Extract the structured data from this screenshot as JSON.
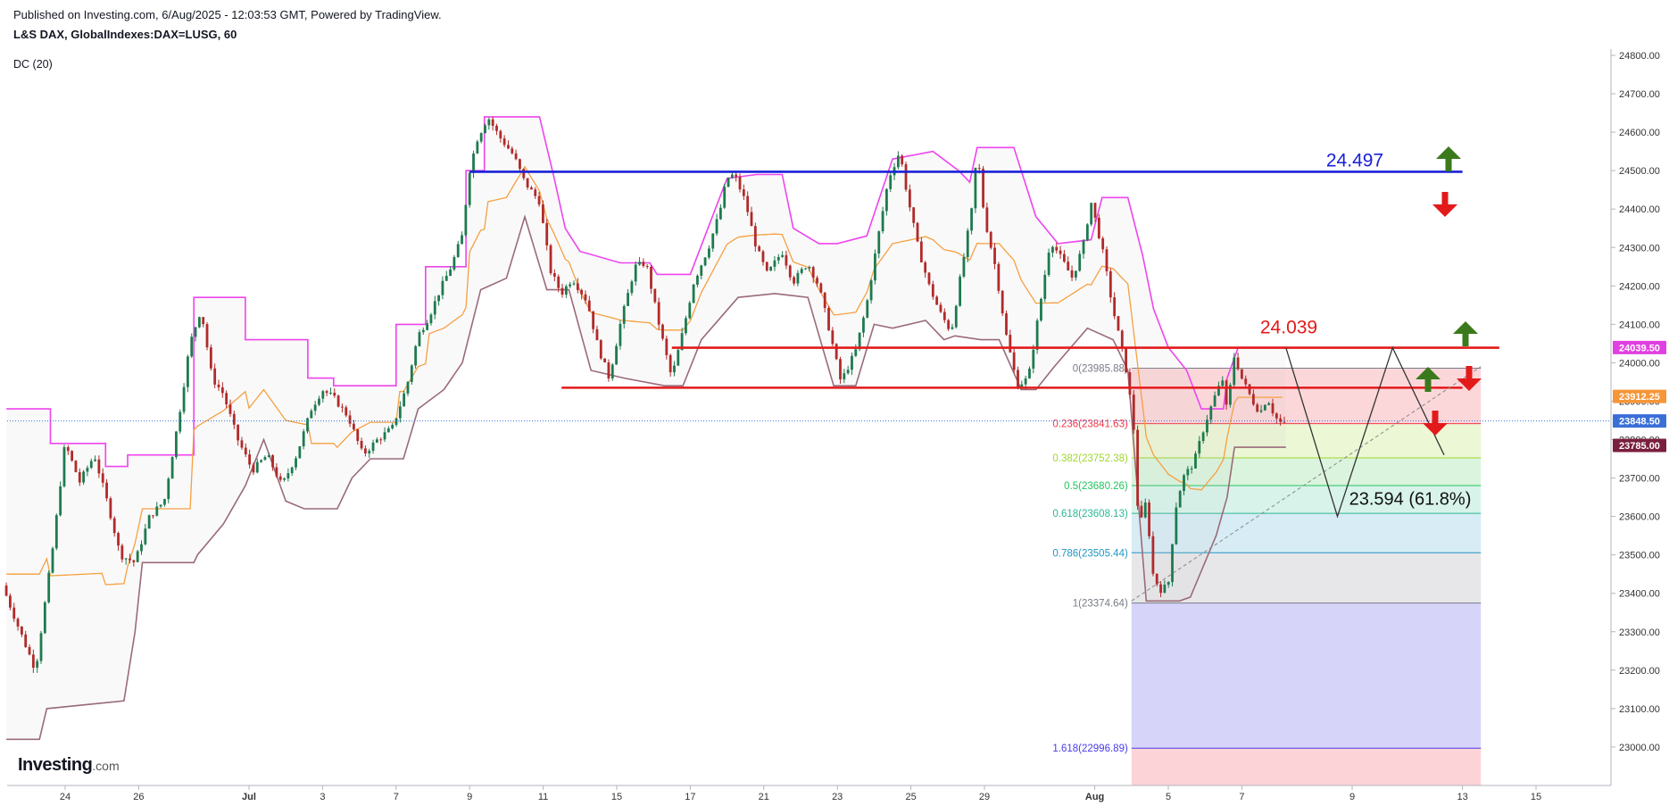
{
  "header": {
    "published": "Published on Investing.com, 6/Aug/2025 - 12:03:53 GMT, Powered by TradingView.",
    "symbol": "L&S DAX, GlobalIndexes:DAX=LUSG, 60",
    "indicator": "DC (20)"
  },
  "branding": {
    "logo_main": "Investing",
    "logo_suffix": ".com"
  },
  "colors": {
    "up_candle": "#1e7a4f",
    "down_candle": "#b12a2a",
    "dc_upper": "#ee44ee",
    "dc_mid": "#f5a041",
    "dc_lower": "#9a6b7a",
    "resistance_blue": "#1a20d8",
    "support_red": "#e31a1a",
    "arrow_up": "#3a7a1c",
    "arrow_down": "#e31a1a"
  },
  "chart_data": {
    "type": "candlestick",
    "ylim": [
      22900,
      24850
    ],
    "y_ticks": [
      "24800.00",
      "24700.00",
      "24600.00",
      "24500.00",
      "24400.00",
      "24300.00",
      "24200.00",
      "24100.00",
      "24000.00",
      "23900.00",
      "23800.00",
      "23700.00",
      "23600.00",
      "23500.00",
      "23400.00",
      "23300.00",
      "23200.00",
      "23100.00",
      "23000.00"
    ],
    "x_ticks": [
      {
        "label": "24",
        "t": 0
      },
      {
        "label": "26",
        "t": 2
      },
      {
        "label": "Jul",
        "t": 5
      },
      {
        "label": "3",
        "t": 7
      },
      {
        "label": "7",
        "t": 9
      },
      {
        "label": "9",
        "t": 11
      },
      {
        "label": "11",
        "t": 13
      },
      {
        "label": "15",
        "t": 15
      },
      {
        "label": "17",
        "t": 17
      },
      {
        "label": "21",
        "t": 19
      },
      {
        "label": "23",
        "t": 21
      },
      {
        "label": "25",
        "t": 23
      },
      {
        "label": "29",
        "t": 25
      },
      {
        "label": "Aug",
        "t": 28
      },
      {
        "label": "5",
        "t": 30
      },
      {
        "label": "7",
        "t": 32
      },
      {
        "label": "9",
        "t": 35
      },
      {
        "label": "13",
        "t": 38
      },
      {
        "label": "15",
        "t": 40
      }
    ],
    "path_points": [
      [
        -1.6,
        23420
      ],
      [
        -1.2,
        23320
      ],
      [
        -0.7,
        23200
      ],
      [
        -0.2,
        23540
      ],
      [
        0.1,
        23790
      ],
      [
        0.5,
        23690
      ],
      [
        0.9,
        23760
      ],
      [
        1.3,
        23620
      ],
      [
        1.6,
        23500
      ],
      [
        2.0,
        23480
      ],
      [
        2.4,
        23600
      ],
      [
        2.8,
        23640
      ],
      [
        3.2,
        23860
      ],
      [
        3.5,
        24050
      ],
      [
        3.8,
        24140
      ],
      [
        4.1,
        23960
      ],
      [
        4.4,
        23920
      ],
      [
        4.8,
        23800
      ],
      [
        5.2,
        23720
      ],
      [
        5.6,
        23760
      ],
      [
        6.0,
        23680
      ],
      [
        6.4,
        23760
      ],
      [
        6.8,
        23880
      ],
      [
        7.1,
        23930
      ],
      [
        7.4,
        23910
      ],
      [
        7.8,
        23860
      ],
      [
        8.2,
        23760
      ],
      [
        8.6,
        23800
      ],
      [
        9.0,
        23830
      ],
      [
        9.4,
        23940
      ],
      [
        9.7,
        24070
      ],
      [
        10.0,
        24120
      ],
      [
        10.3,
        24190
      ],
      [
        10.6,
        24250
      ],
      [
        10.9,
        24330
      ],
      [
        11.1,
        24500
      ],
      [
        11.3,
        24580
      ],
      [
        11.6,
        24640
      ],
      [
        11.9,
        24590
      ],
      [
        12.3,
        24540
      ],
      [
        12.6,
        24470
      ],
      [
        13.0,
        24420
      ],
      [
        13.3,
        24240
      ],
      [
        13.6,
        24180
      ],
      [
        13.9,
        24220
      ],
      [
        14.3,
        24160
      ],
      [
        14.6,
        24040
      ],
      [
        14.9,
        23960
      ],
      [
        15.2,
        24100
      ],
      [
        15.6,
        24250
      ],
      [
        15.9,
        24260
      ],
      [
        16.3,
        24080
      ],
      [
        16.6,
        23960
      ],
      [
        16.9,
        24080
      ],
      [
        17.2,
        24210
      ],
      [
        17.6,
        24300
      ],
      [
        17.9,
        24390
      ],
      [
        18.1,
        24480
      ],
      [
        18.3,
        24490
      ],
      [
        18.6,
        24420
      ],
      [
        18.9,
        24300
      ],
      [
        19.2,
        24230
      ],
      [
        19.6,
        24290
      ],
      [
        19.9,
        24210
      ],
      [
        20.3,
        24260
      ],
      [
        20.6,
        24200
      ],
      [
        20.9,
        24080
      ],
      [
        21.2,
        23950
      ],
      [
        21.6,
        24030
      ],
      [
        21.9,
        24150
      ],
      [
        22.2,
        24320
      ],
      [
        22.5,
        24480
      ],
      [
        22.8,
        24550
      ],
      [
        23.0,
        24440
      ],
      [
        23.3,
        24300
      ],
      [
        23.6,
        24200
      ],
      [
        23.9,
        24130
      ],
      [
        24.2,
        24080
      ],
      [
        24.5,
        24250
      ],
      [
        24.8,
        24420
      ],
      [
        24.9,
        24560
      ],
      [
        25.1,
        24380
      ],
      [
        25.4,
        24250
      ],
      [
        25.7,
        24070
      ],
      [
        26.0,
        23940
      ],
      [
        26.3,
        23960
      ],
      [
        26.6,
        24140
      ],
      [
        26.9,
        24320
      ],
      [
        27.2,
        24270
      ],
      [
        27.5,
        24220
      ],
      [
        27.8,
        24310
      ],
      [
        28.0,
        24420
      ],
      [
        28.3,
        24300
      ],
      [
        28.6,
        24140
      ],
      [
        28.9,
        24010
      ],
      [
        29.0,
        23960
      ],
      [
        29.2,
        23800
      ],
      [
        29.3,
        23560
      ],
      [
        29.5,
        23640
      ],
      [
        29.7,
        23440
      ],
      [
        29.9,
        23410
      ],
      [
        30.1,
        23420
      ],
      [
        30.3,
        23620
      ],
      [
        30.5,
        23700
      ],
      [
        30.8,
        23740
      ],
      [
        31.1,
        23840
      ],
      [
        31.4,
        23920
      ],
      [
        31.6,
        23960
      ],
      [
        31.7,
        23870
      ],
      [
        31.9,
        24020
      ],
      [
        32.1,
        23960
      ],
      [
        32.4,
        23900
      ],
      [
        32.6,
        23870
      ],
      [
        32.8,
        23910
      ],
      [
        33.0,
        23860
      ],
      [
        33.2,
        23840
      ]
    ],
    "donchian": {
      "period": 20,
      "upper": [
        [
          -1.6,
          23880
        ],
        [
          -1.1,
          23880
        ],
        [
          -1.1,
          23880
        ],
        [
          -0.4,
          23880
        ],
        [
          -0.4,
          23790
        ],
        [
          1.1,
          23790
        ],
        [
          1.1,
          23730
        ],
        [
          1.7,
          23730
        ],
        [
          1.7,
          23760
        ],
        [
          3.5,
          23760
        ],
        [
          3.5,
          24170
        ],
        [
          4.9,
          24170
        ],
        [
          4.9,
          24060
        ],
        [
          6.6,
          24060
        ],
        [
          6.6,
          23960
        ],
        [
          7.3,
          23960
        ],
        [
          7.3,
          23940
        ],
        [
          9.0,
          23940
        ],
        [
          9.0,
          24100
        ],
        [
          9.8,
          24100
        ],
        [
          9.8,
          24250
        ],
        [
          10.9,
          24250
        ],
        [
          10.9,
          24500
        ],
        [
          11.4,
          24500
        ],
        [
          11.4,
          24640
        ],
        [
          12.9,
          24640
        ],
        [
          13.3,
          24480
        ],
        [
          13.6,
          24350
        ],
        [
          14.0,
          24290
        ],
        [
          15.1,
          24260
        ],
        [
          15.9,
          24260
        ],
        [
          16.1,
          24230
        ],
        [
          17.0,
          24230
        ],
        [
          17.4,
          24330
        ],
        [
          18.0,
          24480
        ],
        [
          18.8,
          24490
        ],
        [
          19.5,
          24490
        ],
        [
          19.8,
          24350
        ],
        [
          20.5,
          24310
        ],
        [
          21.0,
          24310
        ],
        [
          21.8,
          24330
        ],
        [
          22.5,
          24530
        ],
        [
          23.6,
          24550
        ],
        [
          24.3,
          24500
        ],
        [
          24.6,
          24470
        ],
        [
          24.8,
          24560
        ],
        [
          25.8,
          24560
        ],
        [
          26.4,
          24380
        ],
        [
          27.0,
          24310
        ],
        [
          27.9,
          24320
        ],
        [
          28.2,
          24430
        ],
        [
          28.9,
          24430
        ],
        [
          29.3,
          24280
        ],
        [
          29.6,
          24140
        ],
        [
          30.0,
          24040
        ],
        [
          30.5,
          23980
        ],
        [
          30.9,
          23880
        ],
        [
          31.5,
          23880
        ],
        [
          31.6,
          23960
        ],
        [
          31.9,
          24040
        ],
        [
          33.2,
          24040
        ]
      ],
      "lower": [
        [
          -1.6,
          23020
        ],
        [
          -0.7,
          23020
        ],
        [
          -0.5,
          23100
        ],
        [
          1.6,
          23120
        ],
        [
          1.9,
          23300
        ],
        [
          2.1,
          23480
        ],
        [
          3.5,
          23480
        ],
        [
          3.6,
          23500
        ],
        [
          4.3,
          23580
        ],
        [
          4.9,
          23680
        ],
        [
          5.4,
          23800
        ],
        [
          6.0,
          23640
        ],
        [
          6.5,
          23620
        ],
        [
          7.4,
          23620
        ],
        [
          7.8,
          23700
        ],
        [
          8.3,
          23750
        ],
        [
          9.2,
          23750
        ],
        [
          9.6,
          23880
        ],
        [
          10.3,
          23930
        ],
        [
          10.8,
          24000
        ],
        [
          11.3,
          24190
        ],
        [
          12.0,
          24220
        ],
        [
          12.5,
          24380
        ],
        [
          13.1,
          24190
        ],
        [
          13.7,
          24190
        ],
        [
          14.3,
          23980
        ],
        [
          15.2,
          23960
        ],
        [
          16.3,
          23940
        ],
        [
          16.8,
          23940
        ],
        [
          17.3,
          24060
        ],
        [
          18.3,
          24170
        ],
        [
          19.3,
          24180
        ],
        [
          20.2,
          24170
        ],
        [
          20.9,
          23940
        ],
        [
          21.5,
          23940
        ],
        [
          22.0,
          24100
        ],
        [
          22.5,
          24090
        ],
        [
          23.4,
          24110
        ],
        [
          23.9,
          24060
        ],
        [
          24.2,
          24070
        ],
        [
          24.9,
          24060
        ],
        [
          25.4,
          24060
        ],
        [
          26.0,
          23930
        ],
        [
          26.4,
          23930
        ],
        [
          26.9,
          23990
        ],
        [
          27.8,
          24090
        ],
        [
          28.5,
          24060
        ],
        [
          28.9,
          23980
        ],
        [
          29.4,
          23380
        ],
        [
          30.3,
          23380
        ],
        [
          30.6,
          23390
        ],
        [
          31.3,
          23550
        ],
        [
          31.6,
          23650
        ],
        [
          31.8,
          23780
        ],
        [
          32.1,
          23780
        ],
        [
          33.2,
          23780
        ]
      ]
    },
    "levels": [
      {
        "label": "24.497",
        "value": 24497,
        "color": "#1a20d8",
        "t_start": 11,
        "t_end": 38
      },
      {
        "label": "24.039",
        "value": 24039,
        "color": "#e31a1a",
        "t_start": 16.5,
        "t_end": 39
      },
      {
        "label": "",
        "value": 23935,
        "color": "#e31a1a",
        "t_start": 13.5,
        "t_end": 38
      }
    ],
    "fib_retracement": [
      {
        "label": "0(23985.88)",
        "value": 23985.88,
        "ratio": 0,
        "color": "#787b86"
      },
      {
        "label": "0.236(23841.63)",
        "value": 23841.63,
        "ratio": 0.236,
        "color": "#f23645"
      },
      {
        "label": "0.382(23752.38)",
        "value": 23752.38,
        "ratio": 0.382,
        "color": "#9fd72c"
      },
      {
        "label": "0.5(23680.26)",
        "value": 23680.26,
        "ratio": 0.5,
        "color": "#22c55e"
      },
      {
        "label": "0.618(23608.13)",
        "value": 23608.13,
        "ratio": 0.618,
        "color": "#2bb894"
      },
      {
        "label": "0.786(23505.44)",
        "value": 23505.44,
        "ratio": 0.786,
        "color": "#2196c4"
      },
      {
        "label": "1(23374.64)",
        "value": 23374.64,
        "ratio": 1,
        "color": "#787b86"
      },
      {
        "label": "1.618(22996.89)",
        "value": 22996.89,
        "ratio": 1.618,
        "color": "#4a3ae8"
      }
    ],
    "fib_range_t": [
      29.0,
      38.5
    ],
    "trend_line": {
      "from": [
        29.0,
        23380
      ],
      "to": [
        38.5,
        23990
      ]
    },
    "projection": {
      "points": [
        [
          33.2,
          24039
        ],
        [
          34.6,
          23600
        ],
        [
          36.1,
          24039
        ],
        [
          37.5,
          23760
        ]
      ],
      "label": "23.594  (61.8%)"
    },
    "price_tags": [
      {
        "label": "24039.50",
        "value": 24039.5,
        "color": "#e040e0"
      },
      {
        "label": "23912.25",
        "value": 23912.25,
        "color": "#f59638"
      },
      {
        "label": "23848.50",
        "value": 23848.5,
        "color": "#3b6fd8"
      },
      {
        "label": "23785.00",
        "value": 23785,
        "color": "#7a1f3d"
      }
    ],
    "current_price": 23848.5
  }
}
